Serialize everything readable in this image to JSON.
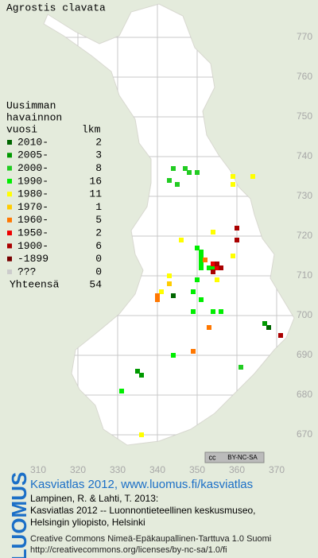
{
  "title": "Agrostis clavata",
  "legend_header": [
    "Uusimman",
    "havainnon",
    "vuosi",
    "lkm"
  ],
  "legend": [
    {
      "label": "2010-",
      "count": 2,
      "color": "#006600",
      "points": [
        [
          344,
          705
        ],
        [
          368,
          697
        ]
      ]
    },
    {
      "label": "2005-",
      "count": 3,
      "color": "#009900",
      "points": [
        [
          335,
          686
        ],
        [
          336,
          685
        ],
        [
          367,
          698
        ]
      ]
    },
    {
      "label": "2000-",
      "count": 8,
      "color": "#22cc22",
      "points": [
        [
          344,
          737
        ],
        [
          347,
          737
        ],
        [
          348,
          736
        ],
        [
          350,
          736
        ],
        [
          343,
          734
        ],
        [
          345,
          733
        ],
        [
          349,
          706
        ],
        [
          361,
          687
        ]
      ]
    },
    {
      "label": "1990-",
      "count": 16,
      "color": "#00ee00",
      "points": [
        [
          350,
          717
        ],
        [
          351,
          716
        ],
        [
          351,
          715
        ],
        [
          351,
          714
        ],
        [
          351,
          713
        ],
        [
          351,
          712
        ],
        [
          353,
          712
        ],
        [
          354,
          712
        ],
        [
          351,
          704
        ],
        [
          349,
          701
        ],
        [
          354,
          701
        ],
        [
          356,
          701
        ],
        [
          344,
          690
        ],
        [
          349,
          706
        ],
        [
          350,
          709
        ],
        [
          331,
          681
        ]
      ]
    },
    {
      "label": "1980-",
      "count": 11,
      "color": "#ffff00",
      "points": [
        [
          346,
          719
        ],
        [
          354,
          721
        ],
        [
          359,
          733
        ],
        [
          359,
          735
        ],
        [
          364,
          735
        ],
        [
          360,
          719
        ],
        [
          355,
          709
        ],
        [
          341,
          706
        ],
        [
          336,
          670
        ],
        [
          359,
          715
        ],
        [
          343,
          710
        ]
      ]
    },
    {
      "label": "1970-",
      "count": 1,
      "color": "#ffcc00",
      "points": [
        [
          343,
          708
        ]
      ]
    },
    {
      "label": "1960-",
      "count": 5,
      "color": "#ff7700",
      "points": [
        [
          340,
          705
        ],
        [
          349,
          691
        ],
        [
          353,
          697
        ],
        [
          352,
          714
        ],
        [
          340,
          704
        ]
      ]
    },
    {
      "label": "1950-",
      "count": 2,
      "color": "#ee0000",
      "points": [
        [
          355,
          712
        ],
        [
          354,
          713
        ]
      ]
    },
    {
      "label": "1900-",
      "count": 6,
      "color": "#aa0000",
      "points": [
        [
          360,
          722
        ],
        [
          360,
          719
        ],
        [
          371,
          695
        ],
        [
          356,
          712
        ],
        [
          355,
          713
        ],
        [
          354,
          711
        ]
      ]
    },
    {
      "label": "-1899",
      "count": 0,
      "color": "#770000",
      "points": []
    },
    {
      "label": "???",
      "count": 0,
      "color": "#cccccc",
      "points": []
    }
  ],
  "total_label": "Yhteensä",
  "total": 54,
  "xlim": [
    300.4,
    380.4
  ],
  "ylim": [
    659.4,
    779.4
  ],
  "xticks": [
    310,
    320,
    330,
    340,
    350,
    360,
    370
  ],
  "yticks": [
    670,
    680,
    690,
    700,
    710,
    720,
    730,
    740,
    750,
    760,
    770
  ],
  "license_badge": [
    "cc",
    "BY-NC-SA"
  ],
  "logo": "LUOMUS",
  "footer": {
    "link": "Kasviatlas 2012, www.luomus.fi/kasviatlas",
    "citation": [
      "Lampinen, R. & Lahti, T. 2013:",
      "Kasviatlas 2012 -- Luonnontieteellinen keskusmuseo,",
      "Helsingin yliopisto, Helsinki"
    ],
    "license": [
      "Creative Commons Nimeä-Epäkaupallinen-Tarttuva 1.0 Suomi",
      "http://creativecommons.org/licenses/by-nc-sa/1.0/fi"
    ]
  }
}
